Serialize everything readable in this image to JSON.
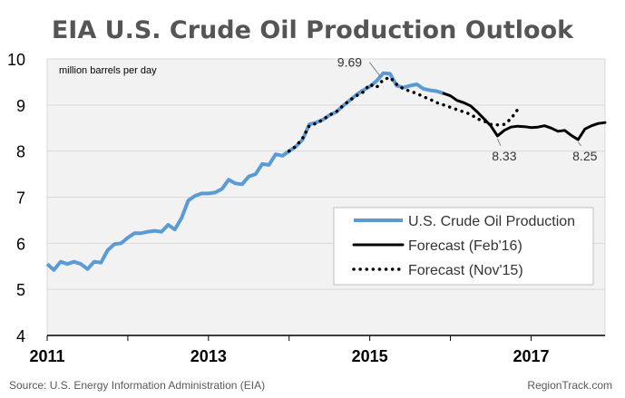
{
  "chart_data": {
    "type": "line",
    "title": "EIA U.S. Crude Oil Production Outlook",
    "ylabel": "million barrels per day",
    "xlabel": "",
    "ylim": [
      4,
      10
    ],
    "xlim": [
      2011.0,
      2017.917
    ],
    "y_ticks": [
      "4",
      "5",
      "6",
      "7",
      "8",
      "9",
      "10"
    ],
    "x_ticks": [
      {
        "label": "2011",
        "value": 2011
      },
      {
        "label": "2013",
        "value": 2013
      },
      {
        "label": "2015",
        "value": 2015
      },
      {
        "label": "2017",
        "value": 2017
      }
    ],
    "grid": true,
    "legend_position": "bottom-right",
    "series": [
      {
        "name": "U.S. Crude Oil Production",
        "color": "#5b9bd5",
        "style": "solid-thick",
        "x": [
          2011.0,
          2011.083,
          2011.167,
          2011.25,
          2011.333,
          2011.417,
          2011.5,
          2011.583,
          2011.667,
          2011.75,
          2011.833,
          2011.917,
          2012.0,
          2012.083,
          2012.167,
          2012.25,
          2012.333,
          2012.417,
          2012.5,
          2012.583,
          2012.667,
          2012.75,
          2012.833,
          2012.917,
          2013.0,
          2013.083,
          2013.167,
          2013.25,
          2013.333,
          2013.417,
          2013.5,
          2013.583,
          2013.667,
          2013.75,
          2013.833,
          2013.917,
          2014.0,
          2014.083,
          2014.167,
          2014.25,
          2014.333,
          2014.417,
          2014.5,
          2014.583,
          2014.667,
          2014.75,
          2014.833,
          2014.917,
          2015.0,
          2015.083,
          2015.167,
          2015.25,
          2015.333,
          2015.417,
          2015.5,
          2015.583,
          2015.667,
          2015.75,
          2015.833,
          2015.917
        ],
        "values": [
          5.55,
          5.42,
          5.6,
          5.55,
          5.6,
          5.55,
          5.44,
          5.6,
          5.58,
          5.85,
          5.98,
          6.0,
          6.12,
          6.22,
          6.22,
          6.25,
          6.27,
          6.25,
          6.4,
          6.3,
          6.55,
          6.93,
          7.03,
          7.08,
          7.08,
          7.1,
          7.18,
          7.38,
          7.3,
          7.28,
          7.45,
          7.5,
          7.72,
          7.7,
          7.93,
          7.9,
          8.0,
          8.1,
          8.25,
          8.58,
          8.62,
          8.68,
          8.78,
          8.85,
          8.98,
          9.1,
          9.22,
          9.32,
          9.4,
          9.52,
          9.69,
          9.68,
          9.42,
          9.38,
          9.42,
          9.45,
          9.35,
          9.32,
          9.3,
          9.25
        ]
      },
      {
        "name": "Forecast (Feb'16)",
        "color": "#000000",
        "style": "solid",
        "x": [
          2015.917,
          2016.0,
          2016.083,
          2016.167,
          2016.25,
          2016.333,
          2016.417,
          2016.5,
          2016.583,
          2016.667,
          2016.75,
          2016.833,
          2016.917,
          2017.0,
          2017.083,
          2017.167,
          2017.25,
          2017.333,
          2017.417,
          2017.5,
          2017.583,
          2017.667,
          2017.75,
          2017.833,
          2017.917
        ],
        "values": [
          9.25,
          9.2,
          9.1,
          9.05,
          8.98,
          8.85,
          8.7,
          8.55,
          8.33,
          8.45,
          8.52,
          8.54,
          8.53,
          8.51,
          8.52,
          8.55,
          8.5,
          8.43,
          8.45,
          8.34,
          8.25,
          8.48,
          8.55,
          8.6,
          8.62
        ]
      },
      {
        "name": "Forecast (Nov'15)",
        "color": "#000000",
        "style": "dotted",
        "x": [
          2014.0,
          2014.083,
          2014.167,
          2014.25,
          2014.333,
          2014.417,
          2014.5,
          2014.583,
          2014.667,
          2014.75,
          2014.833,
          2014.917,
          2015.0,
          2015.083,
          2015.167,
          2015.25,
          2015.333,
          2015.417,
          2015.5,
          2015.583,
          2015.667,
          2015.75,
          2015.833,
          2015.917,
          2016.0,
          2016.083,
          2016.167,
          2016.25,
          2016.333,
          2016.417,
          2016.5,
          2016.583,
          2016.667,
          2016.75,
          2016.833
        ],
        "values": [
          8.0,
          8.1,
          8.28,
          8.55,
          8.6,
          8.68,
          8.78,
          8.85,
          8.98,
          9.1,
          9.2,
          9.28,
          9.45,
          9.38,
          9.55,
          9.6,
          9.45,
          9.35,
          9.3,
          9.25,
          9.18,
          9.12,
          9.05,
          9.0,
          8.95,
          8.9,
          8.85,
          8.8,
          8.7,
          8.65,
          8.58,
          8.57,
          8.58,
          8.7,
          8.9
        ]
      }
    ],
    "annotations": [
      {
        "text": "9.69",
        "x": 2015.167,
        "y": 9.69,
        "label_x": 2014.75,
        "label_y": 9.83
      },
      {
        "text": "8.33",
        "x": 2016.583,
        "y": 8.33,
        "label_x": 2016.667,
        "label_y": 7.8
      },
      {
        "text": "8.25",
        "x": 2017.583,
        "y": 8.25,
        "label_x": 2017.667,
        "label_y": 7.8
      }
    ]
  },
  "footer": {
    "source": "Source: U.S. Energy Information Administration (EIA)",
    "credit": "RegionTrack.com"
  }
}
